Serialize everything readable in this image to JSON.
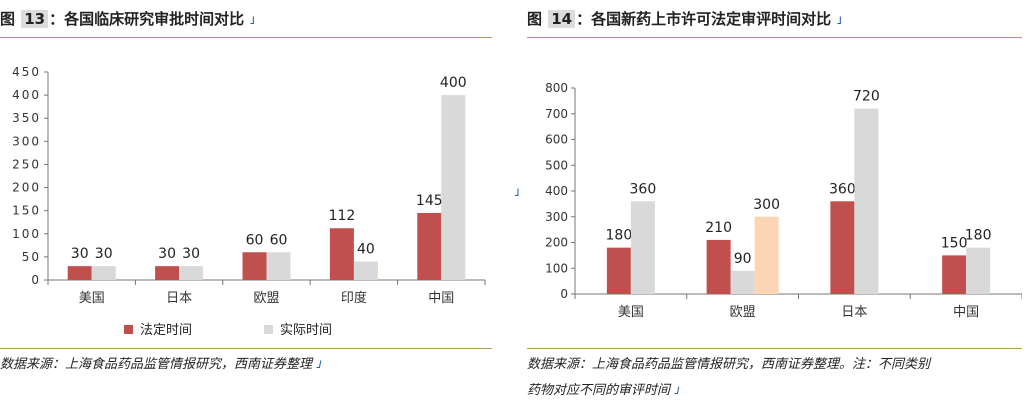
{
  "left": {
    "title_prefix": "图",
    "title_num": "13",
    "title_text": "：各国临床研究审批时间对比",
    "source": "数据来源：上海食品药品监管情报研究，西南证券整理",
    "corner_mark": "˩"
  },
  "right": {
    "title_prefix": "图",
    "title_num": "14",
    "title_text": "：各国新药上市许可法定审评时间对比",
    "source_line1": "数据来源：上海食品药品监管情报研究，西南证券整理。注：不同类别",
    "source_line2": "药物对应不同的审评时间",
    "corner_mark": "˩"
  },
  "chart_data": [
    {
      "type": "bar",
      "categories": [
        "美国",
        "日本",
        "欧盟",
        "印度",
        "中国"
      ],
      "series": [
        {
          "name": "法定时间",
          "values": [
            30,
            30,
            60,
            112,
            145
          ],
          "color": "#c0504d"
        },
        {
          "name": "实际时间",
          "values": [
            30,
            30,
            60,
            40,
            400
          ],
          "color": "#d9d9d9"
        }
      ],
      "ylim": [
        0,
        450
      ],
      "yticks": [
        "0",
        "50",
        "100",
        "150",
        "200",
        "250",
        "300",
        "350",
        "400",
        "450"
      ],
      "legend": "bottom",
      "grid": false
    },
    {
      "type": "bar",
      "categories": [
        "美国",
        "欧盟",
        "日本",
        "中国"
      ],
      "series": [
        {
          "name": "",
          "values": [
            180,
            210,
            360,
            150
          ],
          "colors": [
            "#c0504d",
            "#c0504d",
            "#c0504d",
            "#c0504d"
          ]
        },
        {
          "name": "",
          "values": [
            360,
            90,
            720,
            180
          ],
          "colors": [
            "#d9d9d9",
            "#d9d9d9",
            "#d9d9d9",
            "#d9d9d9"
          ]
        }
      ],
      "extra_bars": [
        {
          "category_index": 1,
          "value": 300,
          "color": "#fcd5b4"
        }
      ],
      "ylim": [
        0,
        800
      ],
      "yticks": [
        "0",
        "100",
        "200",
        "300",
        "400",
        "500",
        "600",
        "700",
        "800"
      ],
      "legend": "none",
      "grid": false
    }
  ],
  "middle_mark": "˩"
}
